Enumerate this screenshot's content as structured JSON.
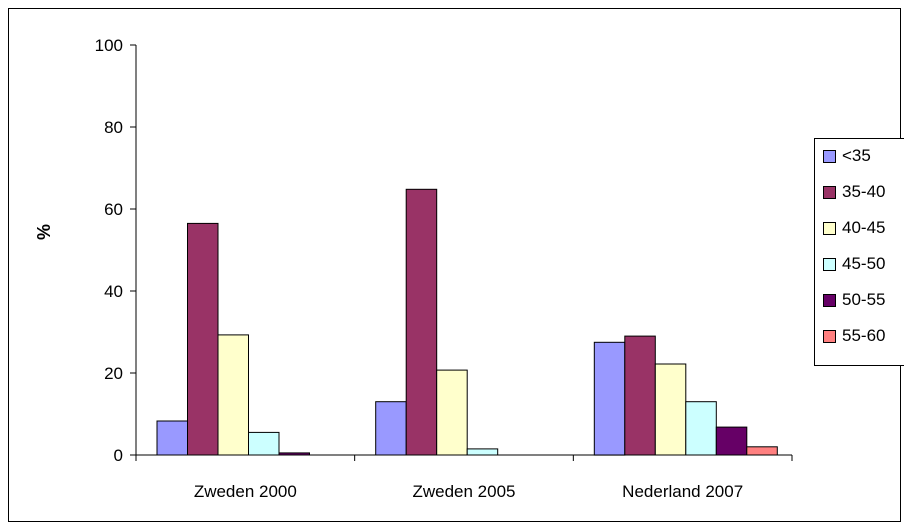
{
  "chart_data": {
    "type": "bar",
    "title": "",
    "xlabel": "",
    "ylabel": "%",
    "ylim": [
      0,
      100
    ],
    "yticks": [
      0,
      20,
      40,
      60,
      80,
      100
    ],
    "grid": false,
    "legend_position": "right",
    "categories": [
      "Zweden 2000",
      "Zweden 2005",
      "Nederland 2007"
    ],
    "series": [
      {
        "name": "<35",
        "color": "#9999ff",
        "values": [
          8.3,
          13.0,
          27.5
        ]
      },
      {
        "name": "35-40",
        "color": "#993366",
        "values": [
          56.5,
          64.8,
          29.0
        ]
      },
      {
        "name": "40-45",
        "color": "#ffffcc",
        "values": [
          29.3,
          20.7,
          22.2
        ]
      },
      {
        "name": "45-50",
        "color": "#ccffff",
        "values": [
          5.5,
          1.5,
          13.0
        ]
      },
      {
        "name": "50-55",
        "color": "#660066",
        "values": [
          0.5,
          0,
          6.8
        ]
      },
      {
        "name": "55-60",
        "color": "#ff8080",
        "values": [
          0,
          0,
          2.0
        ]
      }
    ]
  }
}
